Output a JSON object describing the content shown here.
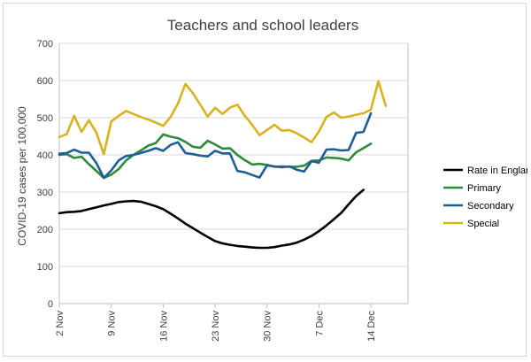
{
  "chart_data": {
    "type": "line",
    "title": "Teachers and school leaders",
    "xlabel": "",
    "ylabel": "COVID-19 cases per 100,000",
    "ylim": [
      0,
      700
    ],
    "yticks": [
      0,
      100,
      200,
      300,
      400,
      500,
      600,
      700
    ],
    "xlim": [
      0,
      47
    ],
    "xtick_labels": [
      {
        "x": 0,
        "label": "2 Nov"
      },
      {
        "x": 7,
        "label": "9 Nov"
      },
      {
        "x": 14,
        "label": "16 Nov"
      },
      {
        "x": 21,
        "label": "23 Nov"
      },
      {
        "x": 28,
        "label": "30 Nov"
      },
      {
        "x": 35,
        "label": "7 Dec"
      },
      {
        "x": 42,
        "label": "14 Dec"
      }
    ],
    "grid": "horizontal",
    "legend_position": "right",
    "series": [
      {
        "name": "Rate in England",
        "color": "#000000",
        "points": [
          [
            0,
            243
          ],
          [
            1,
            246
          ],
          [
            2,
            247
          ],
          [
            3,
            249
          ],
          [
            4,
            254
          ],
          [
            5,
            259
          ],
          [
            6,
            264
          ],
          [
            7,
            268
          ],
          [
            8,
            273
          ],
          [
            9,
            275
          ],
          [
            10,
            276
          ],
          [
            11,
            274
          ],
          [
            12,
            268
          ],
          [
            13,
            262
          ],
          [
            14,
            254
          ],
          [
            15,
            242
          ],
          [
            16,
            229
          ],
          [
            17,
            215
          ],
          [
            18,
            203
          ],
          [
            19,
            191
          ],
          [
            20,
            179
          ],
          [
            21,
            168
          ],
          [
            22,
            162
          ],
          [
            23,
            158
          ],
          [
            24,
            155
          ],
          [
            25,
            153
          ],
          [
            26,
            151
          ],
          [
            27,
            150
          ],
          [
            28,
            150
          ],
          [
            29,
            152
          ],
          [
            30,
            156
          ],
          [
            31,
            159
          ],
          [
            32,
            164
          ],
          [
            33,
            172
          ],
          [
            34,
            182
          ],
          [
            35,
            195
          ],
          [
            36,
            210
          ],
          [
            37,
            227
          ],
          [
            38,
            244
          ],
          [
            39,
            267
          ],
          [
            40,
            289
          ],
          [
            41,
            306
          ]
        ]
      },
      {
        "name": "Primary",
        "color": "#2e8b3e",
        "points": [
          [
            0,
            400
          ],
          [
            1,
            402
          ],
          [
            2,
            392
          ],
          [
            3,
            395
          ],
          [
            4,
            375
          ],
          [
            5,
            357
          ],
          [
            6,
            338
          ],
          [
            7,
            347
          ],
          [
            8,
            362
          ],
          [
            9,
            385
          ],
          [
            10,
            400
          ],
          [
            11,
            412
          ],
          [
            12,
            425
          ],
          [
            13,
            432
          ],
          [
            14,
            455
          ],
          [
            15,
            449
          ],
          [
            16,
            445
          ],
          [
            17,
            435
          ],
          [
            18,
            422
          ],
          [
            19,
            419
          ],
          [
            20,
            438
          ],
          [
            21,
            428
          ],
          [
            22,
            417
          ],
          [
            23,
            418
          ],
          [
            24,
            400
          ],
          [
            25,
            386
          ],
          [
            26,
            374
          ],
          [
            27,
            376
          ],
          [
            28,
            373
          ],
          [
            29,
            368
          ],
          [
            30,
            369
          ],
          [
            31,
            368
          ],
          [
            32,
            368
          ],
          [
            33,
            371
          ],
          [
            34,
            384
          ],
          [
            35,
            385
          ],
          [
            36,
            393
          ],
          [
            37,
            392
          ],
          [
            38,
            390
          ],
          [
            39,
            385
          ],
          [
            40,
            407
          ],
          [
            41,
            418
          ],
          [
            42,
            430
          ]
        ]
      },
      {
        "name": "Secondary",
        "color": "#1f5f96",
        "points": [
          [
            0,
            403
          ],
          [
            1,
            405
          ],
          [
            2,
            414
          ],
          [
            3,
            406
          ],
          [
            4,
            406
          ],
          [
            5,
            378
          ],
          [
            6,
            338
          ],
          [
            7,
            358
          ],
          [
            8,
            385
          ],
          [
            9,
            397
          ],
          [
            10,
            400
          ],
          [
            11,
            405
          ],
          [
            12,
            411
          ],
          [
            13,
            418
          ],
          [
            14,
            411
          ],
          [
            15,
            427
          ],
          [
            16,
            434
          ],
          [
            17,
            405
          ],
          [
            18,
            402
          ],
          [
            19,
            398
          ],
          [
            20,
            396
          ],
          [
            21,
            411
          ],
          [
            22,
            404
          ],
          [
            23,
            404
          ],
          [
            24,
            357
          ],
          [
            25,
            353
          ],
          [
            26,
            346
          ],
          [
            27,
            339
          ],
          [
            28,
            372
          ],
          [
            29,
            369
          ],
          [
            30,
            367
          ],
          [
            31,
            369
          ],
          [
            32,
            360
          ],
          [
            33,
            355
          ],
          [
            34,
            383
          ],
          [
            35,
            379
          ],
          [
            36,
            414
          ],
          [
            37,
            415
          ],
          [
            38,
            412
          ],
          [
            39,
            413
          ],
          [
            40,
            459
          ],
          [
            41,
            462
          ],
          [
            42,
            512
          ]
        ]
      },
      {
        "name": "Special",
        "color": "#d9b31e",
        "points": [
          [
            0,
            448
          ],
          [
            1,
            456
          ],
          [
            2,
            505
          ],
          [
            3,
            462
          ],
          [
            4,
            493
          ],
          [
            5,
            460
          ],
          [
            6,
            402
          ],
          [
            7,
            490
          ],
          [
            8,
            505
          ],
          [
            9,
            518
          ],
          [
            10,
            510
          ],
          [
            11,
            502
          ],
          [
            12,
            495
          ],
          [
            13,
            487
          ],
          [
            14,
            478
          ],
          [
            15,
            502
          ],
          [
            16,
            538
          ],
          [
            17,
            591
          ],
          [
            18,
            566
          ],
          [
            19,
            535
          ],
          [
            20,
            503
          ],
          [
            21,
            527
          ],
          [
            22,
            510
          ],
          [
            23,
            527
          ],
          [
            24,
            535
          ],
          [
            25,
            505
          ],
          [
            26,
            481
          ],
          [
            27,
            453
          ],
          [
            28,
            467
          ],
          [
            29,
            481
          ],
          [
            30,
            465
          ],
          [
            31,
            467
          ],
          [
            32,
            458
          ],
          [
            33,
            447
          ],
          [
            34,
            434
          ],
          [
            35,
            463
          ],
          [
            36,
            502
          ],
          [
            37,
            514
          ],
          [
            38,
            500
          ],
          [
            39,
            503
          ],
          [
            40,
            508
          ],
          [
            41,
            512
          ],
          [
            42,
            522
          ],
          [
            43,
            598
          ],
          [
            44,
            532
          ]
        ]
      }
    ]
  }
}
